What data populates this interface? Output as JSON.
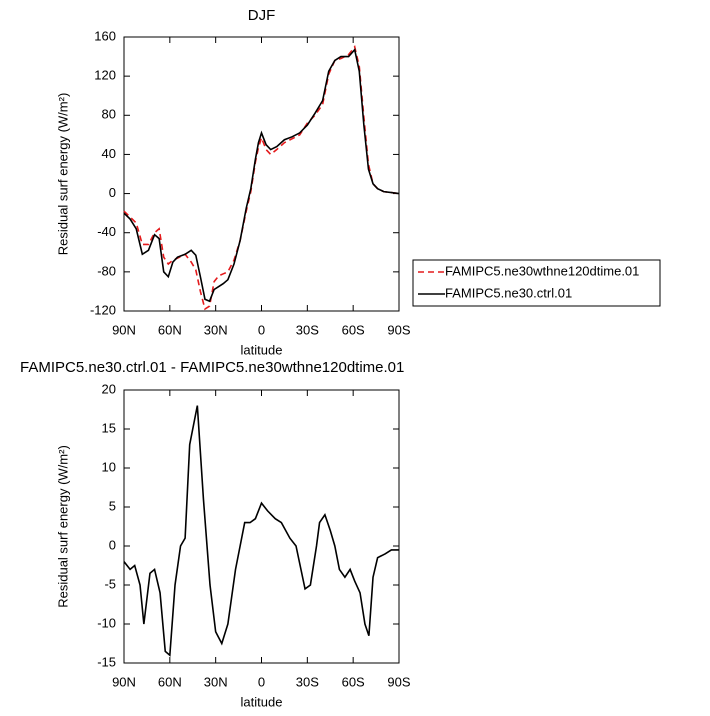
{
  "chart_data": [
    {
      "type": "line",
      "title": "DJF",
      "xlabel": "latitude",
      "ylabel": "Residual surf energy (W/m²)",
      "x": [
        90,
        86,
        82,
        78,
        74,
        70,
        67,
        64,
        61,
        58,
        55,
        50,
        46,
        43,
        40,
        37,
        34,
        31,
        28,
        25,
        22,
        18,
        14,
        10,
        7,
        4,
        2,
        0,
        -3,
        -6,
        -10,
        -15,
        -20,
        -25,
        -30,
        -35,
        -40,
        -44,
        -48,
        -52,
        -57,
        -61,
        -64,
        -67,
        -70,
        -73,
        -76,
        -80,
        -85,
        -90
      ],
      "series": [
        {
          "name": "FAMIPC5.ne30wthne120dtime.01",
          "color": "#e41a1c",
          "linestyle": "dashed",
          "values": [
            -18,
            -24,
            -30,
            -52,
            -52,
            -40,
            -36,
            -65,
            -72,
            -68,
            -66,
            -62,
            -70,
            -78,
            -100,
            -118,
            -115,
            -90,
            -84,
            -82,
            -80,
            -68,
            -48,
            -18,
            2,
            32,
            47,
            57,
            45,
            40,
            45,
            52,
            56,
            60,
            72,
            80,
            91,
            122,
            136,
            138,
            142,
            150,
            130,
            78,
            30,
            10,
            5,
            2,
            1,
            0
          ]
        },
        {
          "name": "FAMIPC5.ne30.ctrl.01",
          "color": "#000000",
          "linestyle": "solid",
          "values": [
            -20,
            -26,
            -36,
            -62,
            -58,
            -42,
            -46,
            -80,
            -85,
            -70,
            -65,
            -62,
            -58,
            -63,
            -85,
            -108,
            -110,
            -98,
            -95,
            -92,
            -88,
            -72,
            -48,
            -15,
            5,
            35,
            52,
            62,
            50,
            45,
            48,
            55,
            58,
            62,
            70,
            82,
            95,
            125,
            136,
            140,
            140,
            147,
            125,
            70,
            25,
            10,
            5,
            2,
            1,
            0
          ]
        }
      ],
      "xlim": [
        90,
        -90
      ],
      "xticks": [
        {
          "value": 90,
          "label": "90N"
        },
        {
          "value": 60,
          "label": "60N"
        },
        {
          "value": 30,
          "label": "30N"
        },
        0,
        {
          "value": -30,
          "label": "30S"
        },
        {
          "value": -60,
          "label": "60S"
        },
        {
          "value": -90,
          "label": "90S"
        }
      ],
      "ylim": [
        -120,
        160
      ],
      "yticks": [
        -120,
        -80,
        -40,
        0,
        40,
        80,
        120,
        160
      ],
      "legend": "right"
    },
    {
      "type": "line",
      "title": "FAMIPC5.ne30.ctrl.01 - FAMIPC5.ne30wthne120dtime.01",
      "xlabel": "latitude",
      "ylabel": "Residual surf energy (W/m²)",
      "x": [
        90,
        86,
        83,
        79.5,
        77,
        73,
        70,
        66.4,
        63,
        60,
        56.6,
        53,
        50,
        47,
        42,
        38,
        33.7,
        30,
        26,
        22,
        17,
        14,
        11,
        7.5,
        4,
        0,
        -4,
        -9,
        -13,
        -18.6,
        -22.6,
        -28.5,
        -32,
        -36,
        -38,
        -41.5,
        -45,
        -48,
        -51,
        -54.6,
        -58,
        -61,
        -64.5,
        -67.7,
        -70.3,
        -73,
        -76,
        -81,
        -85,
        -90
      ],
      "values": [
        -2,
        -3,
        -2.5,
        -5,
        -10,
        -3.5,
        -3,
        -6,
        -13.5,
        -14,
        -5,
        0,
        1,
        13,
        18,
        6,
        -5,
        -11,
        -12.5,
        -10,
        -3,
        0,
        3,
        3,
        3.5,
        5.5,
        4.5,
        3.5,
        3,
        1,
        0,
        -5.5,
        -5,
        0,
        3,
        4,
        2,
        0,
        -3,
        -4,
        -3,
        -4.5,
        -6,
        -10,
        -11.5,
        -4,
        -1.5,
        -1,
        -0.5,
        -0.5
      ],
      "color": "#000000",
      "xlim": [
        90,
        -90
      ],
      "xticks": [
        {
          "value": 90,
          "label": "90N"
        },
        {
          "value": 60,
          "label": "60N"
        },
        {
          "value": 30,
          "label": "30N"
        },
        0,
        {
          "value": -30,
          "label": "30S"
        },
        {
          "value": -60,
          "label": "60S"
        },
        {
          "value": -90,
          "label": "90S"
        }
      ],
      "ylim": [
        -15,
        20
      ],
      "yticks": [
        -15,
        -10,
        -5,
        0,
        5,
        10,
        15,
        20
      ]
    }
  ]
}
